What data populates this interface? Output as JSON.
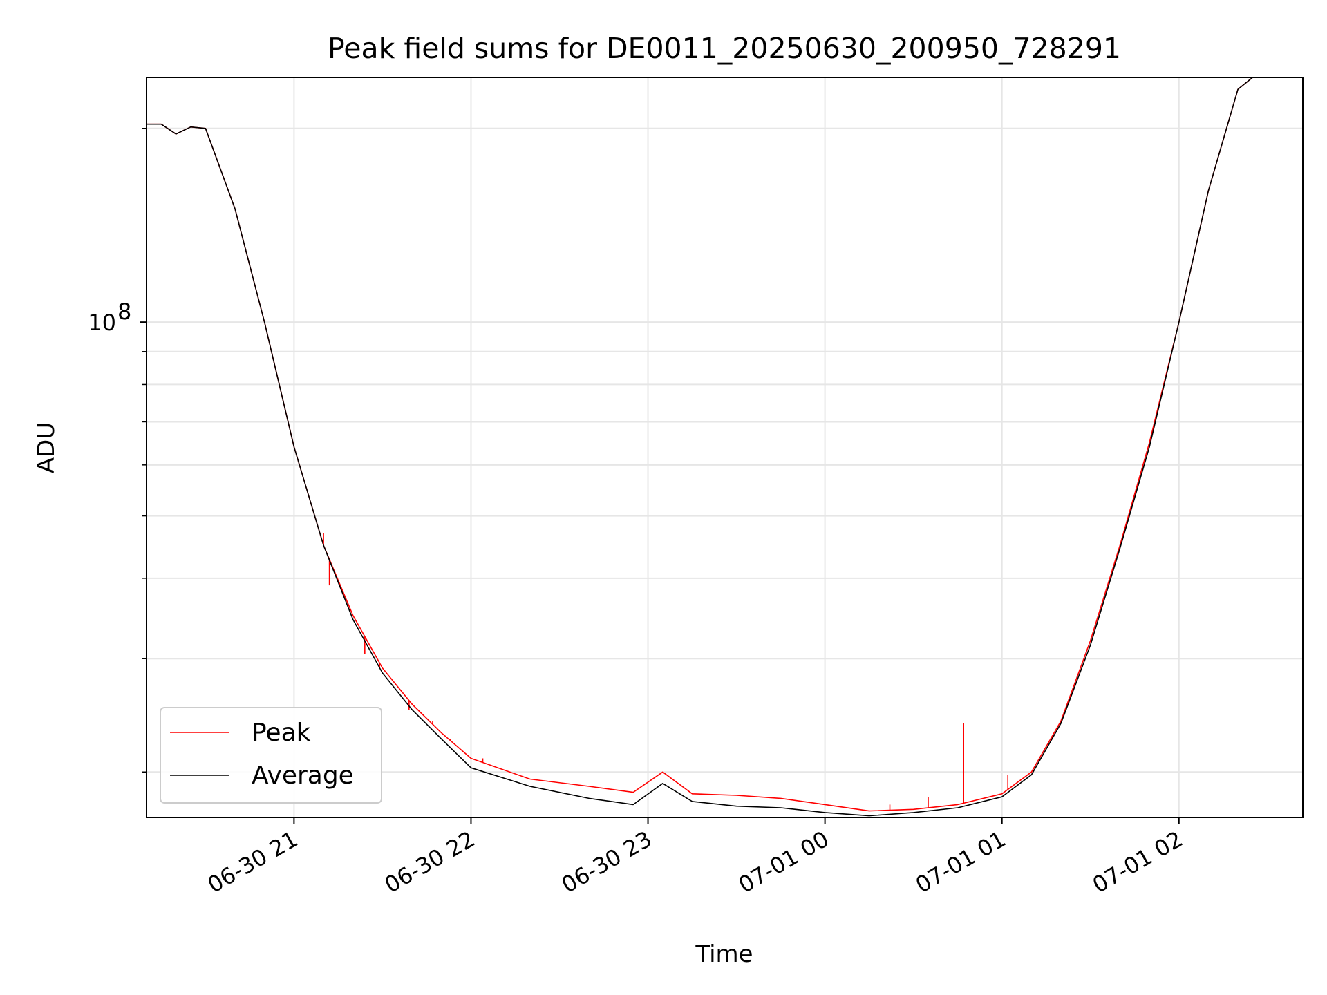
{
  "chart_data": {
    "type": "line",
    "title": "Peak field sums for DE0011_20250630_200950_728291",
    "xlabel": "Time",
    "ylabel": "ADU",
    "yscale": "log",
    "ylim": [
      17000000,
      240000000
    ],
    "xlim": [
      "2025-06-30 20:10",
      "2025-07-01 02:42"
    ],
    "x_ticks": [
      {
        "t": "2025-06-30 21:00",
        "label": "06-30 21"
      },
      {
        "t": "2025-06-30 22:00",
        "label": "06-30 22"
      },
      {
        "t": "2025-06-30 23:00",
        "label": "06-30 23"
      },
      {
        "t": "2025-07-01 00:00",
        "label": "07-01 00"
      },
      {
        "t": "2025-07-01 01:00",
        "label": "07-01 01"
      },
      {
        "t": "2025-07-01 02:00",
        "label": "07-01 02"
      }
    ],
    "y_major_ticks": [
      {
        "value": 100000000,
        "base": "10",
        "exp": "8"
      }
    ],
    "y_minor_ticks": [
      20000000,
      30000000,
      40000000,
      50000000,
      60000000,
      70000000,
      80000000,
      90000000,
      200000000
    ],
    "grid": true,
    "legend_position": "lower-left",
    "series": [
      {
        "name": "Peak",
        "color": "#ff0000",
        "x": [
          "2025-06-30 20:10",
          "2025-06-30 20:15",
          "2025-06-30 20:20",
          "2025-06-30 20:25",
          "2025-06-30 20:30",
          "2025-06-30 20:40",
          "2025-06-30 20:50",
          "2025-06-30 21:00",
          "2025-06-30 21:10",
          "2025-06-30 21:20",
          "2025-06-30 21:30",
          "2025-06-30 21:40",
          "2025-06-30 21:50",
          "2025-06-30 22:00",
          "2025-06-30 22:20",
          "2025-06-30 22:40",
          "2025-06-30 22:55",
          "2025-06-30 23:05",
          "2025-06-30 23:15",
          "2025-06-30 23:30",
          "2025-06-30 23:45",
          "2025-07-01 00:00",
          "2025-07-01 00:15",
          "2025-07-01 00:30",
          "2025-07-01 00:45",
          "2025-07-01 01:00",
          "2025-07-01 01:10",
          "2025-07-01 01:20",
          "2025-07-01 01:30",
          "2025-07-01 01:40",
          "2025-07-01 01:50",
          "2025-07-01 02:00",
          "2025-07-01 02:10",
          "2025-07-01 02:20",
          "2025-07-01 02:25",
          "2025-07-01 02:42"
        ],
        "y": [
          203000000,
          203000000,
          196000000,
          201000000,
          200000000,
          150000000,
          100000000,
          64000000,
          45000000,
          35000000,
          29000000,
          25500000,
          23000000,
          21000000,
          19500000,
          19000000,
          18600000,
          20000000,
          18500000,
          18400000,
          18200000,
          17800000,
          17400000,
          17500000,
          17800000,
          18500000,
          20000000,
          24000000,
          32000000,
          45000000,
          65000000,
          100000000,
          160000000,
          230000000,
          240000000,
          240000000
        ],
        "spikes": [
          {
            "x": "2025-06-30 21:10",
            "y": 47000000
          },
          {
            "x": "2025-06-30 21:12",
            "y": 39000000
          },
          {
            "x": "2025-06-30 21:24",
            "y": 30500000
          },
          {
            "x": "2025-06-30 21:29",
            "y": 29000000
          },
          {
            "x": "2025-06-30 21:39",
            "y": 25000000
          },
          {
            "x": "2025-06-30 21:47",
            "y": 24000000
          },
          {
            "x": "2025-06-30 21:53",
            "y": 22500000
          },
          {
            "x": "2025-06-30 22:04",
            "y": 21000000
          },
          {
            "x": "2025-07-01 00:22",
            "y": 17800000
          },
          {
            "x": "2025-07-01 00:35",
            "y": 18300000
          },
          {
            "x": "2025-07-01 00:47",
            "y": 23800000
          },
          {
            "x": "2025-07-01 01:02",
            "y": 19800000
          },
          {
            "x": "2025-07-01 01:17",
            "y": 22500000
          }
        ]
      },
      {
        "name": "Average",
        "color": "#000000",
        "x": [
          "2025-06-30 20:10",
          "2025-06-30 20:15",
          "2025-06-30 20:20",
          "2025-06-30 20:25",
          "2025-06-30 20:30",
          "2025-06-30 20:40",
          "2025-06-30 20:50",
          "2025-06-30 21:00",
          "2025-06-30 21:10",
          "2025-06-30 21:20",
          "2025-06-30 21:30",
          "2025-06-30 21:40",
          "2025-06-30 21:50",
          "2025-06-30 22:00",
          "2025-06-30 22:20",
          "2025-06-30 22:40",
          "2025-06-30 22:55",
          "2025-06-30 23:05",
          "2025-06-30 23:15",
          "2025-06-30 23:30",
          "2025-06-30 23:45",
          "2025-07-01 00:00",
          "2025-07-01 00:15",
          "2025-07-01 00:30",
          "2025-07-01 00:45",
          "2025-07-01 01:00",
          "2025-07-01 01:10",
          "2025-07-01 01:20",
          "2025-07-01 01:30",
          "2025-07-01 01:40",
          "2025-07-01 01:50",
          "2025-07-01 02:00",
          "2025-07-01 02:10",
          "2025-07-01 02:20",
          "2025-07-01 02:25",
          "2025-07-01 02:42"
        ],
        "y": [
          203000000,
          203000000,
          196000000,
          201000000,
          200000000,
          150000000,
          100000000,
          64000000,
          45000000,
          34500000,
          28500000,
          25000000,
          22500000,
          20300000,
          19000000,
          18200000,
          17800000,
          19200000,
          18000000,
          17700000,
          17600000,
          17300000,
          17100000,
          17300000,
          17600000,
          18300000,
          19800000,
          23800000,
          31500000,
          44500000,
          64000000,
          100000000,
          160000000,
          230000000,
          240000000,
          240000000
        ]
      }
    ]
  }
}
